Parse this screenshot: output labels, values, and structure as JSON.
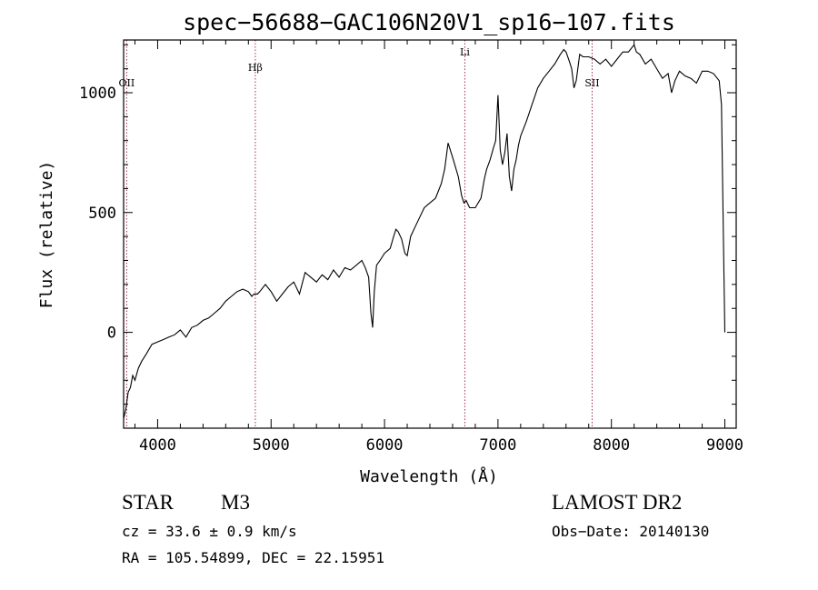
{
  "chart_data": {
    "type": "line",
    "title": "spec−56688−GAC106N20V1_sp16−107.fits",
    "xlabel": "Wavelength (Å)",
    "ylabel": "Flux (relative)",
    "xlim": [
      3700,
      9100
    ],
    "ylim": [
      -400,
      1220
    ],
    "xticks": [
      4000,
      5000,
      6000,
      7000,
      8000,
      9000
    ],
    "yticks": [
      0,
      500,
      1000
    ],
    "xtick_labels": [
      "4000",
      "5000",
      "6000",
      "7000",
      "8000",
      "9000"
    ],
    "ytick_labels": [
      "0",
      "500",
      "1000"
    ],
    "line_color": "#000000",
    "marker_line_color": "#a0304a",
    "spectral_lines": [
      {
        "label": "OII",
        "wavelength": 3727
      },
      {
        "label": "Hβ",
        "wavelength": 4861
      },
      {
        "label": "Li",
        "wavelength": 6708
      },
      {
        "label": "SII",
        "wavelength": 7830
      }
    ],
    "series": [
      {
        "x": [
          3700,
          3720,
          3740,
          3760,
          3780,
          3800,
          3830,
          3860,
          3900,
          3950,
          4000,
          4050,
          4100,
          4150,
          4200,
          4250,
          4300,
          4350,
          4400,
          4450,
          4500,
          4550,
          4600,
          4650,
          4700,
          4750,
          4800,
          4830,
          4850,
          4880,
          4900,
          4950,
          5000,
          5050,
          5100,
          5150,
          5200,
          5250,
          5300,
          5350,
          5400,
          5450,
          5500,
          5550,
          5600,
          5650,
          5700,
          5750,
          5800,
          5830,
          5860,
          5880,
          5895,
          5910,
          5930,
          5960,
          6000,
          6050,
          6080,
          6100,
          6120,
          6150,
          6180,
          6200,
          6230,
          6260,
          6300,
          6350,
          6400,
          6450,
          6500,
          6530,
          6560,
          6600,
          6650,
          6680,
          6700,
          6720,
          6750,
          6800,
          6850,
          6880,
          6900,
          6930,
          6960,
          6980,
          7000,
          7020,
          7040,
          7060,
          7080,
          7100,
          7120,
          7140,
          7160,
          7180,
          7200,
          7250,
          7300,
          7350,
          7400,
          7450,
          7500,
          7550,
          7580,
          7600,
          7630,
          7650,
          7670,
          7690,
          7720,
          7750,
          7800,
          7850,
          7900,
          7950,
          8000,
          8050,
          8100,
          8150,
          8200,
          8220,
          8250,
          8300,
          8350,
          8400,
          8450,
          8500,
          8530,
          8560,
          8600,
          8650,
          8700,
          8750,
          8800,
          8850,
          8900,
          8950,
          8970,
          8990,
          9000
        ],
        "y": [
          -360,
          -320,
          -250,
          -230,
          -180,
          -200,
          -150,
          -120,
          -90,
          -50,
          -40,
          -30,
          -20,
          -10,
          10,
          -20,
          20,
          30,
          50,
          60,
          80,
          100,
          130,
          150,
          170,
          180,
          170,
          150,
          160,
          160,
          170,
          200,
          170,
          130,
          160,
          190,
          210,
          160,
          250,
          230,
          210,
          240,
          220,
          260,
          230,
          270,
          260,
          280,
          300,
          270,
          230,
          80,
          20,
          170,
          280,
          300,
          330,
          350,
          400,
          430,
          420,
          390,
          330,
          320,
          400,
          430,
          470,
          520,
          540,
          560,
          620,
          680,
          790,
          730,
          650,
          570,
          540,
          550,
          520,
          520,
          560,
          640,
          680,
          720,
          770,
          800,
          990,
          760,
          700,
          750,
          830,
          650,
          590,
          680,
          720,
          780,
          820,
          880,
          950,
          1020,
          1060,
          1090,
          1120,
          1160,
          1180,
          1170,
          1130,
          1100,
          1020,
          1050,
          1160,
          1150,
          1150,
          1140,
          1120,
          1140,
          1110,
          1140,
          1170,
          1170,
          1200,
          1170,
          1160,
          1120,
          1140,
          1100,
          1060,
          1080,
          1000,
          1050,
          1090,
          1070,
          1060,
          1040,
          1090,
          1090,
          1080,
          1050,
          950,
          300,
          0
        ]
      }
    ]
  },
  "info": {
    "class_label": "STAR",
    "subclass_label": "M3",
    "survey": "LAMOST DR2",
    "redshift": "cz = 33.6 ± 0.9 km/s",
    "obs_date": "Obs−Date: 20140130",
    "coords": "RA = 105.54899, DEC =  22.15951"
  }
}
